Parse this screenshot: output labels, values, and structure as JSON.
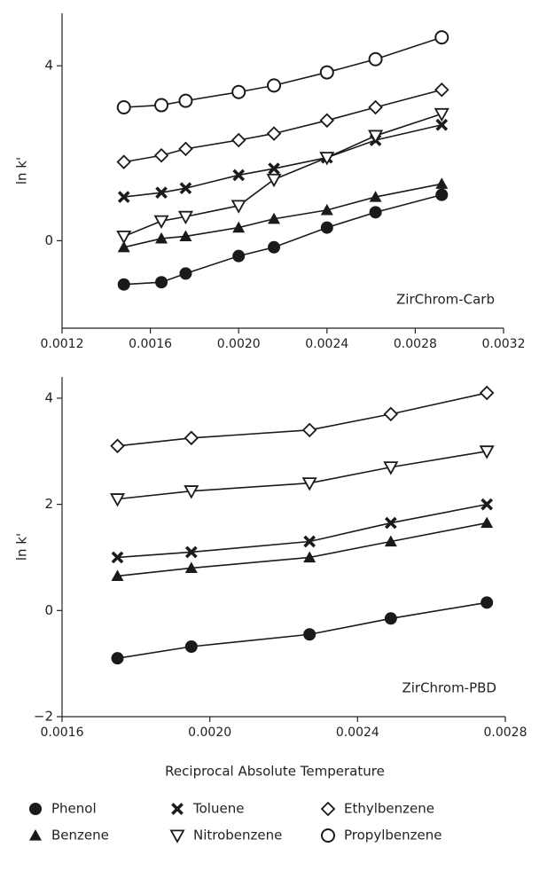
{
  "chart_data": [
    {
      "type": "line",
      "ylabel": "ln k'",
      "annotation": "ZirChrom-Carb",
      "x": [
        0.00148,
        0.00165,
        0.00176,
        0.002,
        0.00216,
        0.0024,
        0.00262,
        0.00292
      ],
      "xlim": [
        0.0012,
        0.0032
      ],
      "xticks": [
        {
          "value": 0.0012,
          "label": "0.0012"
        },
        {
          "value": 0.0016,
          "label": "0.0016"
        },
        {
          "value": 0.002,
          "label": "0.0020"
        },
        {
          "value": 0.0024,
          "label": "0.0024"
        },
        {
          "value": 0.0028,
          "label": "0.0028"
        },
        {
          "value": 0.0032,
          "label": "0.0032"
        }
      ],
      "ylim": [
        -2,
        5.2
      ],
      "yticks": [
        0,
        4
      ],
      "series": [
        {
          "name": "Phenol",
          "marker": "circle-filled",
          "color": "#1a1a1a",
          "values": [
            -1.0,
            -0.95,
            -0.75,
            -0.35,
            -0.15,
            0.3,
            0.65,
            1.05
          ]
        },
        {
          "name": "Benzene",
          "marker": "triangle-filled",
          "color": "#1a1a1a",
          "values": [
            -0.15,
            0.05,
            0.1,
            0.3,
            0.5,
            0.7,
            1.0,
            1.3
          ]
        },
        {
          "name": "Toluene",
          "marker": "cross",
          "color": "#1a1a1a",
          "values": [
            1.0,
            1.1,
            1.2,
            1.5,
            1.65,
            1.9,
            2.3,
            2.65
          ]
        },
        {
          "name": "Nitrobenzene",
          "marker": "triangle-down-open",
          "color": "#1a1a1a",
          "values": [
            0.1,
            0.45,
            0.55,
            0.8,
            1.4,
            1.9,
            2.4,
            2.9
          ]
        },
        {
          "name": "Ethylbenzene",
          "marker": "diamond-open",
          "color": "#1a1a1a",
          "values": [
            1.8,
            1.95,
            2.1,
            2.3,
            2.45,
            2.75,
            3.05,
            3.45
          ]
        },
        {
          "name": "Propylbenzene",
          "marker": "circle-open",
          "color": "#1a1a1a",
          "values": [
            3.05,
            3.1,
            3.2,
            3.4,
            3.55,
            3.85,
            4.15,
            4.65
          ]
        }
      ]
    },
    {
      "type": "line",
      "ylabel": "ln k'",
      "xlabel": "Reciprocal Absolute Temperature",
      "annotation": "ZirChrom-PBD",
      "x": [
        0.00175,
        0.00195,
        0.00227,
        0.00249,
        0.00275
      ],
      "xlim": [
        0.0016,
        0.0028
      ],
      "xticks": [
        {
          "value": 0.0016,
          "label": "0.0016"
        },
        {
          "value": 0.002,
          "label": "0.0020"
        },
        {
          "value": 0.0024,
          "label": "0.0024"
        },
        {
          "value": 0.0028,
          "label": "0.0028"
        }
      ],
      "ylim": [
        -2,
        4.4
      ],
      "yticks": [
        {
          "value": -2,
          "label": "−2"
        },
        0,
        2,
        4
      ],
      "series": [
        {
          "name": "Phenol",
          "marker": "circle-filled",
          "color": "#1a1a1a",
          "values": [
            -0.9,
            -0.68,
            -0.45,
            -0.15,
            0.15
          ]
        },
        {
          "name": "Benzene",
          "marker": "triangle-filled",
          "color": "#1a1a1a",
          "values": [
            0.65,
            0.8,
            1.0,
            1.3,
            1.65
          ]
        },
        {
          "name": "Toluene",
          "marker": "cross",
          "color": "#1a1a1a",
          "values": [
            1.0,
            1.1,
            1.3,
            1.65,
            2.0
          ]
        },
        {
          "name": "Nitrobenzene",
          "marker": "triangle-down-open",
          "color": "#1a1a1a",
          "values": [
            2.1,
            2.25,
            2.4,
            2.7,
            3.0
          ]
        },
        {
          "name": "Ethylbenzene",
          "marker": "diamond-open",
          "color": "#1a1a1a",
          "values": [
            3.1,
            3.25,
            3.4,
            3.7,
            4.1
          ]
        }
      ]
    }
  ]
}
